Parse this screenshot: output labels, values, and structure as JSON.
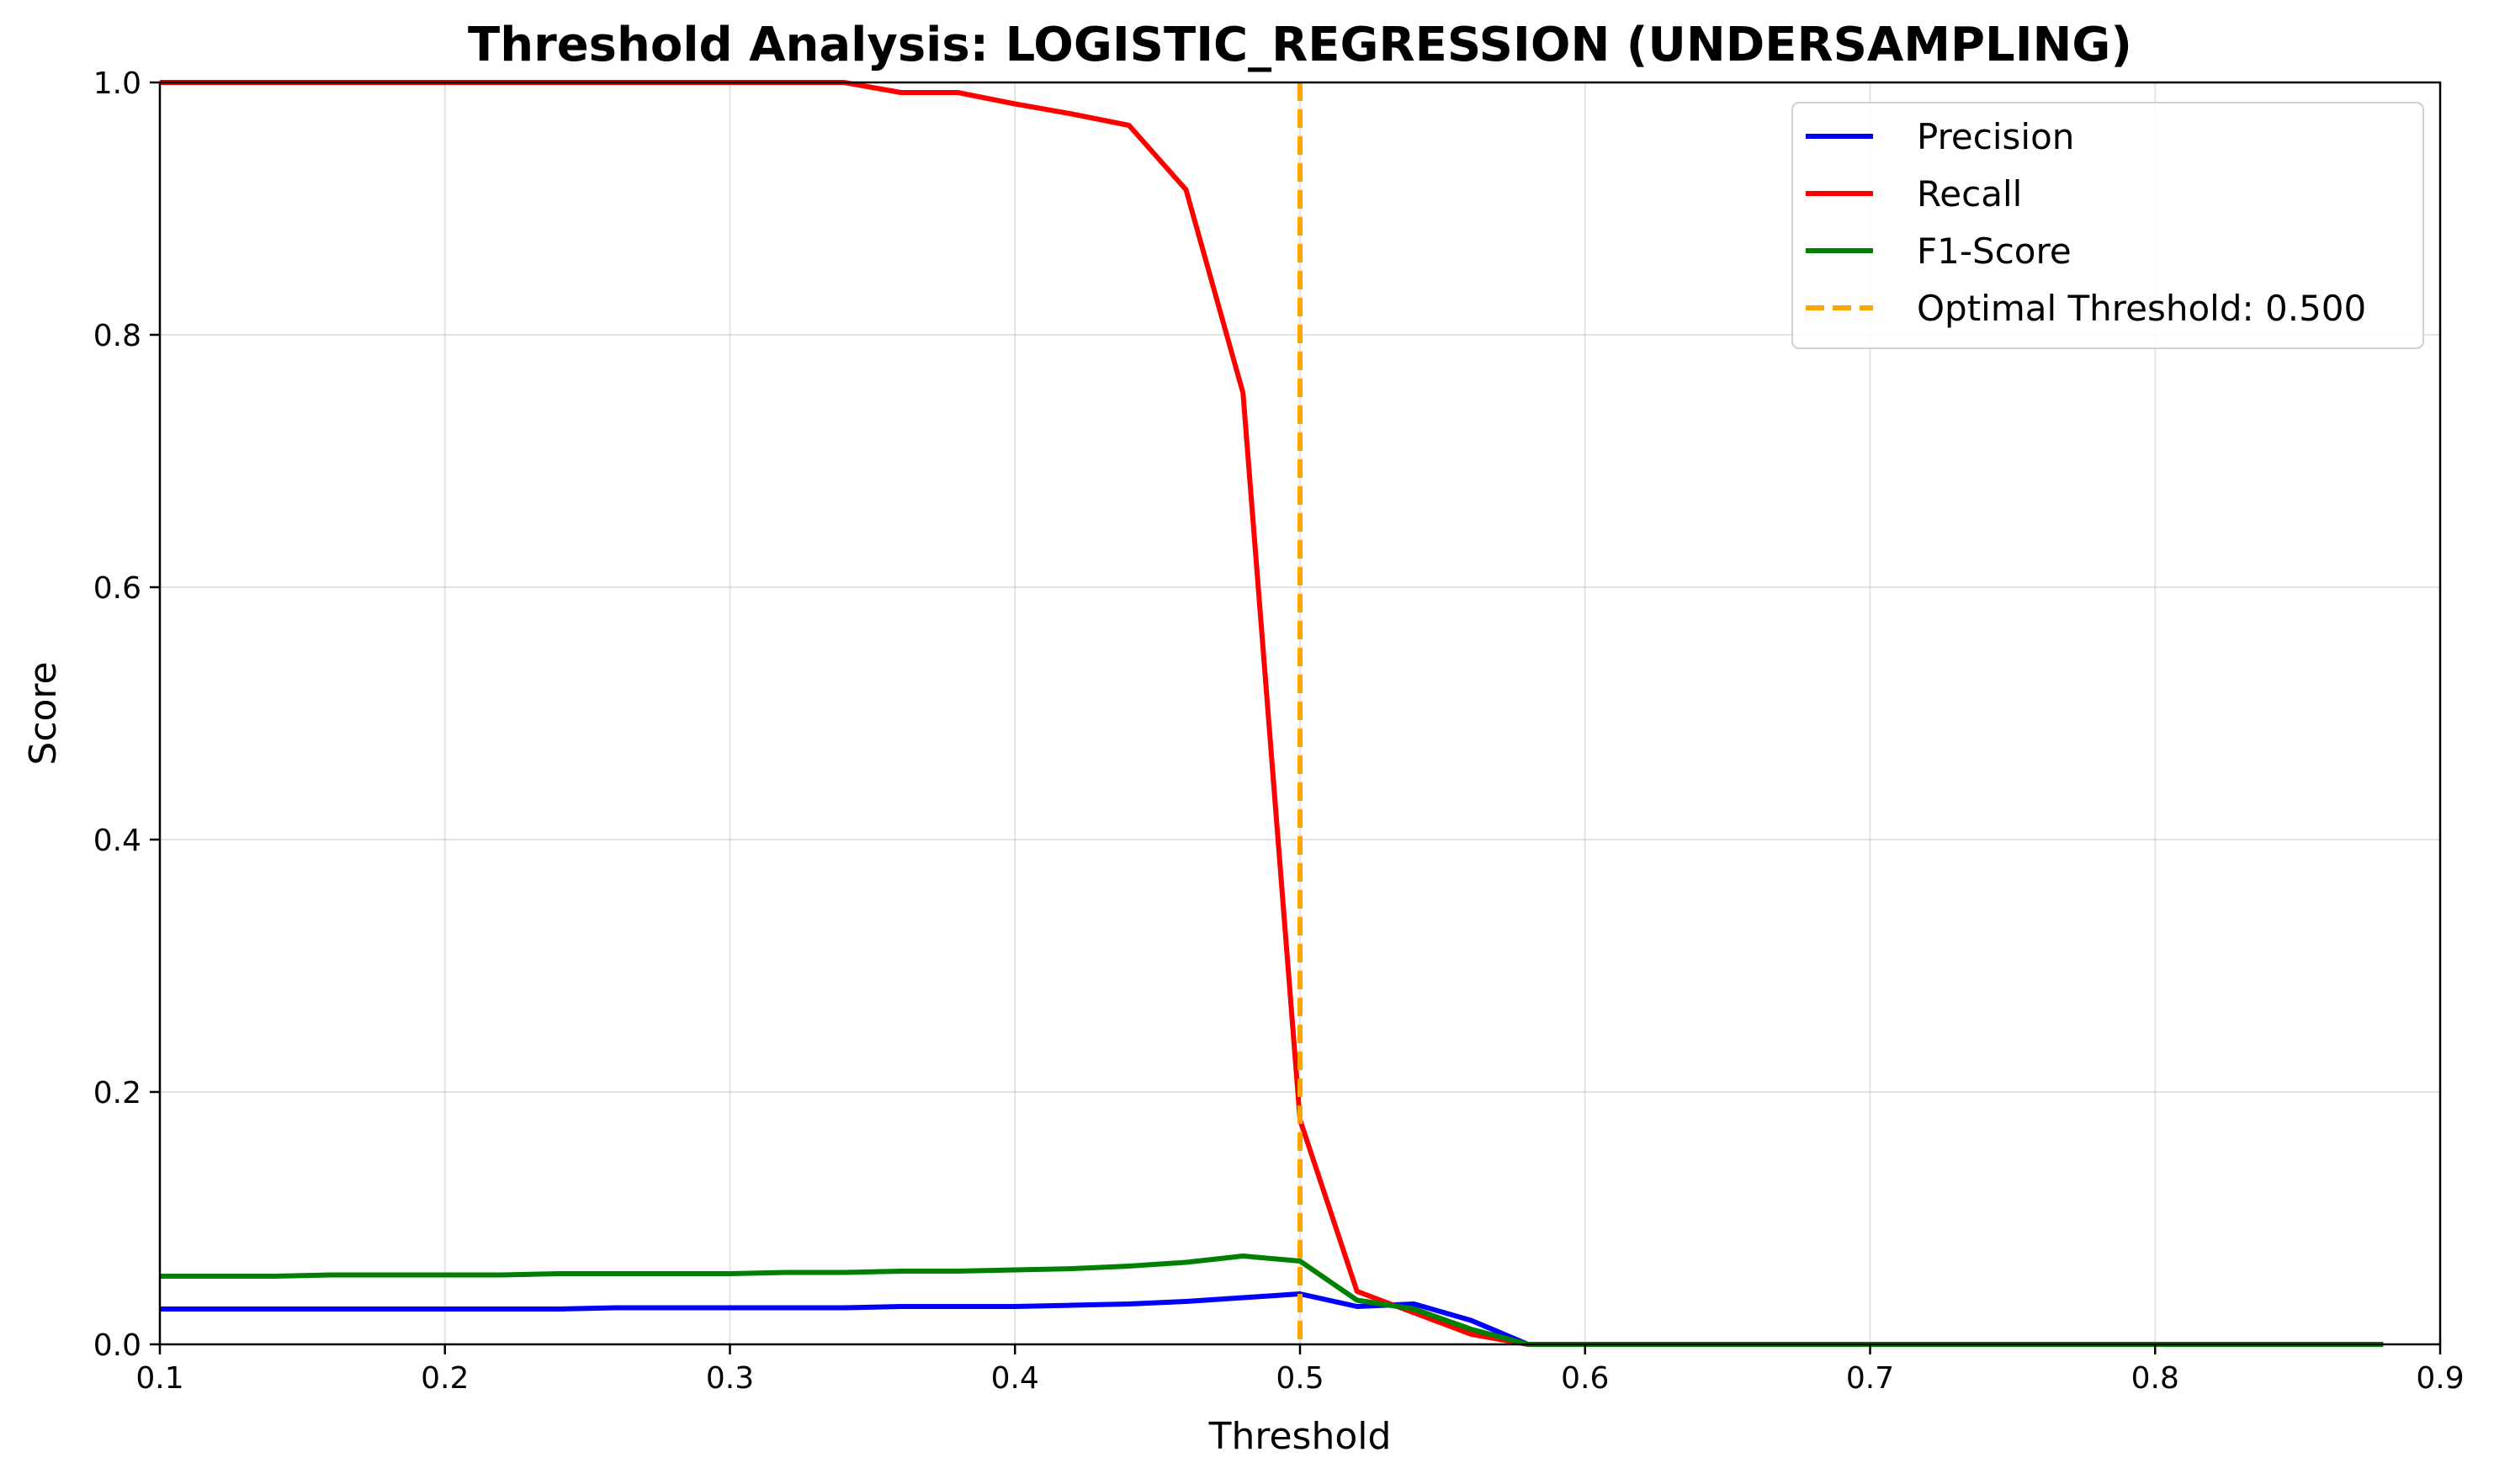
{
  "chart_data": {
    "type": "line",
    "title": "Threshold Analysis: LOGISTIC_REGRESSION (UNDERSAMPLING)",
    "xlabel": "Threshold",
    "ylabel": "Score",
    "xlim": [
      0.1,
      0.9
    ],
    "ylim": [
      0.0,
      1.0
    ],
    "xticks": [
      "0.1",
      "0.2",
      "0.3",
      "0.4",
      "0.5",
      "0.6",
      "0.7",
      "0.8",
      "0.9"
    ],
    "yticks": [
      "0.0",
      "0.2",
      "0.4",
      "0.6",
      "0.8",
      "1.0"
    ],
    "grid": true,
    "legend_position": "top-right",
    "x": [
      0.1,
      0.12,
      0.14,
      0.16,
      0.18,
      0.2,
      0.22,
      0.24,
      0.26,
      0.28,
      0.3,
      0.32,
      0.34,
      0.36,
      0.38,
      0.4,
      0.42,
      0.44,
      0.46,
      0.48,
      0.5,
      0.52,
      0.54,
      0.56,
      0.58,
      0.6,
      0.62,
      0.64,
      0.66,
      0.68,
      0.7,
      0.72,
      0.74,
      0.76,
      0.78,
      0.8,
      0.82,
      0.84,
      0.86,
      0.88
    ],
    "series": [
      {
        "name": "Precision",
        "color": "#0000ff",
        "values": [
          0.028,
          0.028,
          0.028,
          0.028,
          0.028,
          0.028,
          0.028,
          0.028,
          0.029,
          0.029,
          0.029,
          0.029,
          0.029,
          0.03,
          0.03,
          0.03,
          0.031,
          0.032,
          0.034,
          0.037,
          0.04,
          0.03,
          0.032,
          0.019,
          0.0,
          0.0,
          0.0,
          0.0,
          0.0,
          0.0,
          0.0,
          0.0,
          0.0,
          0.0,
          0.0,
          0.0,
          0.0,
          0.0,
          0.0,
          0.0
        ]
      },
      {
        "name": "Recall",
        "color": "#ff0000",
        "values": [
          1.0,
          1.0,
          1.0,
          1.0,
          1.0,
          1.0,
          1.0,
          1.0,
          1.0,
          1.0,
          1.0,
          1.0,
          1.0,
          0.992,
          0.992,
          0.983,
          0.975,
          0.966,
          0.915,
          0.754,
          0.178,
          0.042,
          0.025,
          0.008,
          0.0,
          0.0,
          0.0,
          0.0,
          0.0,
          0.0,
          0.0,
          0.0,
          0.0,
          0.0,
          0.0,
          0.0,
          0.0,
          0.0,
          0.0,
          0.0
        ]
      },
      {
        "name": "F1-Score",
        "color": "#008000",
        "values": [
          0.054,
          0.054,
          0.054,
          0.055,
          0.055,
          0.055,
          0.055,
          0.056,
          0.056,
          0.056,
          0.056,
          0.057,
          0.057,
          0.058,
          0.058,
          0.059,
          0.06,
          0.062,
          0.065,
          0.07,
          0.066,
          0.035,
          0.028,
          0.012,
          0.0,
          0.0,
          0.0,
          0.0,
          0.0,
          0.0,
          0.0,
          0.0,
          0.0,
          0.0,
          0.0,
          0.0,
          0.0,
          0.0,
          0.0,
          0.0
        ]
      }
    ],
    "vline": {
      "name": "Optimal Threshold: 0.500",
      "x": 0.5,
      "color": "#ffa500",
      "style": "dashed"
    }
  }
}
